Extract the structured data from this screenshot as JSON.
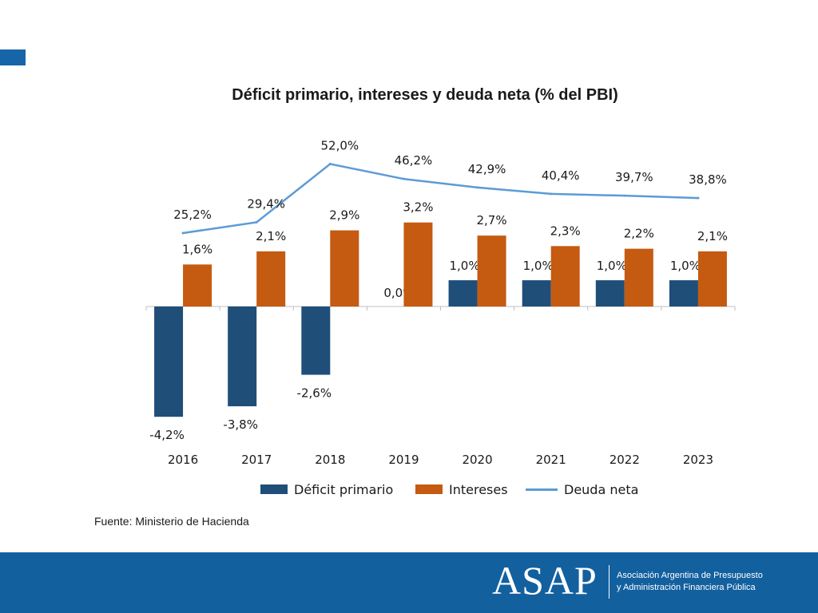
{
  "title": "Déficit primario, intereses y deuda neta (% del PBI)",
  "source": "Fuente: Ministerio de Hacienda",
  "footer": {
    "logo": "ASAP",
    "org_line1": "Asociación Argentina de Presupuesto",
    "org_line2": "y Administración Financiera Pública"
  },
  "colors": {
    "deficit": "#1f4e79",
    "intereses": "#c55a11",
    "deuda": "#5b9bd5",
    "footer": "#13609f"
  },
  "chart_data": {
    "type": "bar",
    "title": "Déficit primario, intereses y deuda neta (% del PBI)",
    "categories": [
      "2016",
      "2017",
      "2018",
      "2019",
      "2020",
      "2021",
      "2022",
      "2023"
    ],
    "series": [
      {
        "name": "Déficit primario",
        "type": "bar",
        "values": [
          -4.2,
          -3.8,
          -2.6,
          0.0,
          1.0,
          1.0,
          1.0,
          1.0
        ],
        "labels": [
          "-4,2%",
          "-3,8%",
          "-2,6%",
          "0,0%",
          "1,0%",
          "1,0%",
          "1,0%",
          "1,0%"
        ]
      },
      {
        "name": "Intereses",
        "type": "bar",
        "values": [
          1.6,
          2.1,
          2.9,
          3.2,
          2.7,
          2.3,
          2.2,
          2.1
        ],
        "labels": [
          "1,6%",
          "2,1%",
          "2,9%",
          "3,2%",
          "2,7%",
          "2,3%",
          "2,2%",
          "2,1%"
        ]
      },
      {
        "name": "Deuda neta",
        "type": "line",
        "values": [
          25.2,
          29.4,
          52.0,
          46.2,
          42.9,
          40.4,
          39.7,
          38.8
        ],
        "labels": [
          "25,2%",
          "29,4%",
          "52,0%",
          "46,2%",
          "42,9%",
          "40,4%",
          "39,7%",
          "38,8%"
        ]
      }
    ],
    "legend_position": "bottom",
    "grid": false
  }
}
